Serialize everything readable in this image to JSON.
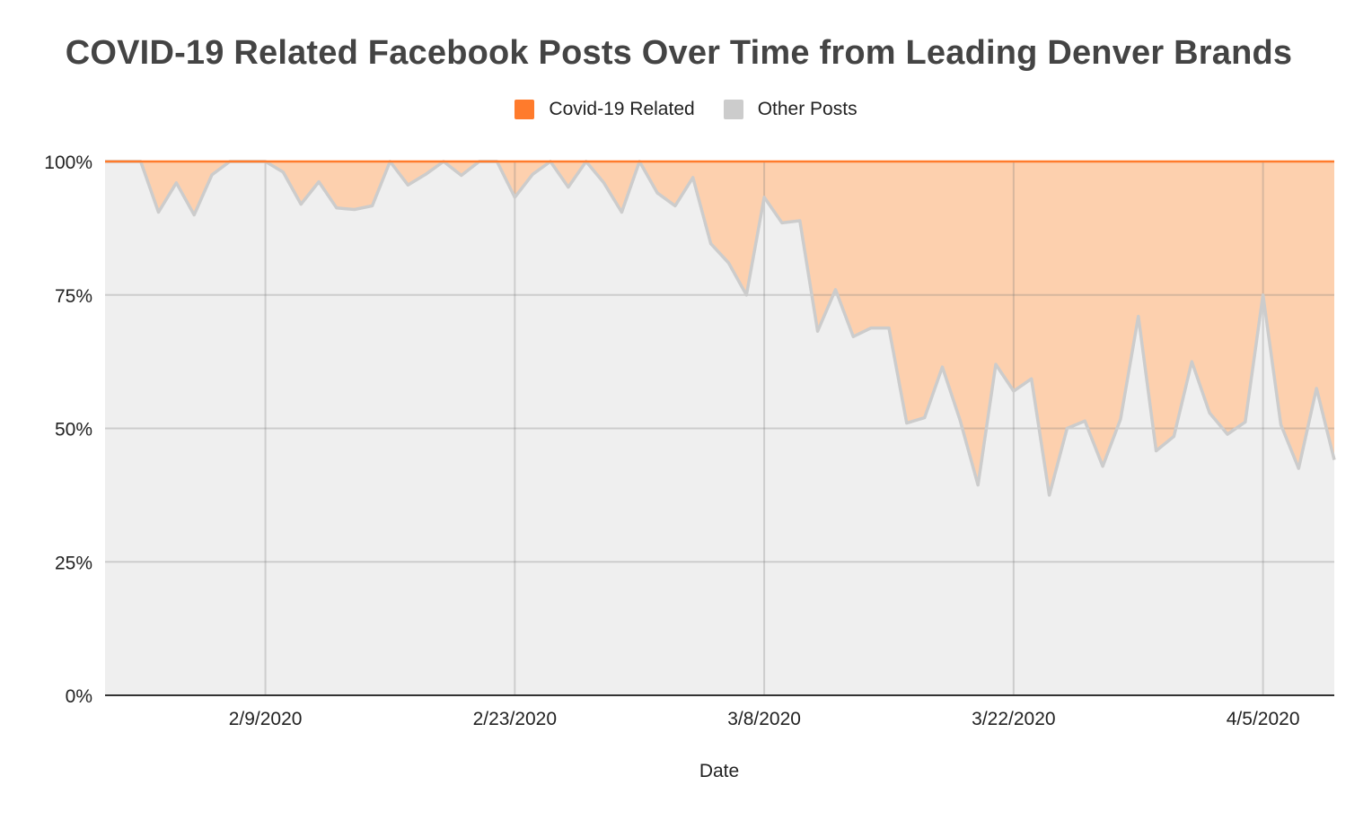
{
  "chart_data": {
    "type": "area",
    "stacked": "percent",
    "title": "COVID-19 Related Facebook Posts Over Time from Leading Denver Brands",
    "xlabel": "Date",
    "ylabel": "",
    "ylim": [
      0,
      100
    ],
    "y_ticks": [
      "0%",
      "25%",
      "50%",
      "75%",
      "100%"
    ],
    "x_ticks": [
      "2/9/2020",
      "2/23/2020",
      "3/8/2020",
      "3/22/2020",
      "4/5/2020"
    ],
    "x_start": "2020-01-31",
    "x_end": "2020-04-09",
    "legend_position": "top",
    "series": [
      {
        "name": "Covid-19 Related",
        "color": "#ff7b2c",
        "fill": "#fdd0ae"
      },
      {
        "name": "Other Posts",
        "color": "#cccccc",
        "fill": "#efefef",
        "values": [
          {
            "x": "2020-01-31",
            "y": 100
          },
          {
            "x": "2020-02-01",
            "y": 100
          },
          {
            "x": "2020-02-02",
            "y": 100
          },
          {
            "x": "2020-02-03",
            "y": 90.5
          },
          {
            "x": "2020-02-04",
            "y": 96
          },
          {
            "x": "2020-02-05",
            "y": 90
          },
          {
            "x": "2020-02-06",
            "y": 97.5
          },
          {
            "x": "2020-02-07",
            "y": 100
          },
          {
            "x": "2020-02-08",
            "y": 100
          },
          {
            "x": "2020-02-09",
            "y": 100
          },
          {
            "x": "2020-02-10",
            "y": 98
          },
          {
            "x": "2020-02-11",
            "y": 92
          },
          {
            "x": "2020-02-12",
            "y": 96.2
          },
          {
            "x": "2020-02-13",
            "y": 91.3
          },
          {
            "x": "2020-02-14",
            "y": 91
          },
          {
            "x": "2020-02-15",
            "y": 91.7
          },
          {
            "x": "2020-02-16",
            "y": 100
          },
          {
            "x": "2020-02-17",
            "y": 95.6
          },
          {
            "x": "2020-02-18",
            "y": 97.6
          },
          {
            "x": "2020-02-19",
            "y": 100
          },
          {
            "x": "2020-02-20",
            "y": 97.4
          },
          {
            "x": "2020-02-21",
            "y": 100
          },
          {
            "x": "2020-02-22",
            "y": 100
          },
          {
            "x": "2020-02-23",
            "y": 93.3
          },
          {
            "x": "2020-02-24",
            "y": 97.6
          },
          {
            "x": "2020-02-25",
            "y": 100
          },
          {
            "x": "2020-02-26",
            "y": 95.2
          },
          {
            "x": "2020-02-27",
            "y": 100
          },
          {
            "x": "2020-02-28",
            "y": 96
          },
          {
            "x": "2020-02-29",
            "y": 90.5
          },
          {
            "x": "2020-03-01",
            "y": 100
          },
          {
            "x": "2020-03-02",
            "y": 94.1
          },
          {
            "x": "2020-03-03",
            "y": 91.7
          },
          {
            "x": "2020-03-04",
            "y": 97
          },
          {
            "x": "2020-03-05",
            "y": 84.6
          },
          {
            "x": "2020-03-06",
            "y": 81
          },
          {
            "x": "2020-03-07",
            "y": 75
          },
          {
            "x": "2020-03-08",
            "y": 93.3
          },
          {
            "x": "2020-03-09",
            "y": 88.5
          },
          {
            "x": "2020-03-10",
            "y": 88.9
          },
          {
            "x": "2020-03-11",
            "y": 68.2
          },
          {
            "x": "2020-03-12",
            "y": 76
          },
          {
            "x": "2020-03-13",
            "y": 67.2
          },
          {
            "x": "2020-03-14",
            "y": 68.8
          },
          {
            "x": "2020-03-15",
            "y": 68.8
          },
          {
            "x": "2020-03-16",
            "y": 51
          },
          {
            "x": "2020-03-17",
            "y": 52
          },
          {
            "x": "2020-03-18",
            "y": 61.5
          },
          {
            "x": "2020-03-19",
            "y": 51.5
          },
          {
            "x": "2020-03-20",
            "y": 39.4
          },
          {
            "x": "2020-03-21",
            "y": 62
          },
          {
            "x": "2020-03-22",
            "y": 57
          },
          {
            "x": "2020-03-23",
            "y": 59.3
          },
          {
            "x": "2020-03-24",
            "y": 37.5
          },
          {
            "x": "2020-03-25",
            "y": 50
          },
          {
            "x": "2020-03-26",
            "y": 51.4
          },
          {
            "x": "2020-03-27",
            "y": 42.9
          },
          {
            "x": "2020-03-28",
            "y": 51.7
          },
          {
            "x": "2020-03-29",
            "y": 71
          },
          {
            "x": "2020-03-30",
            "y": 45.8
          },
          {
            "x": "2020-03-31",
            "y": 48.5
          },
          {
            "x": "2020-04-01",
            "y": 62.5
          },
          {
            "x": "2020-04-02",
            "y": 52.9
          },
          {
            "x": "2020-04-03",
            "y": 48.9
          },
          {
            "x": "2020-04-04",
            "y": 51.2
          },
          {
            "x": "2020-04-05",
            "y": 75
          },
          {
            "x": "2020-04-06",
            "y": 50.7
          },
          {
            "x": "2020-04-07",
            "y": 42.5
          },
          {
            "x": "2020-04-08",
            "y": 57.5
          },
          {
            "x": "2020-04-09",
            "y": 44.1
          }
        ]
      }
    ],
    "grid": true
  }
}
